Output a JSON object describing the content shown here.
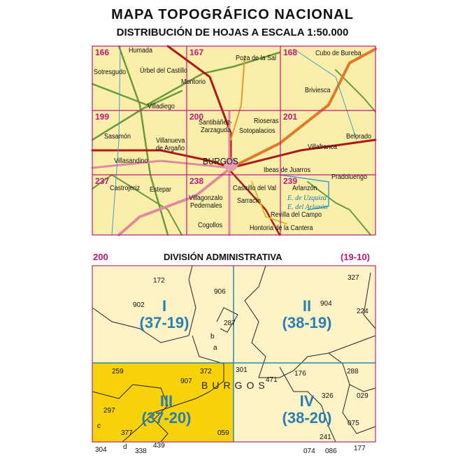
{
  "header": {
    "title": "MAPA TOPOGRÁFICO NACIONAL",
    "subtitle": "DISTRIBUCIÓN DE HOJAS A ESCALA 1:50.000"
  },
  "overview_map": {
    "sheets": [
      "166",
      "167",
      "168",
      "199",
      "200",
      "201",
      "237",
      "238",
      "239"
    ],
    "places": [
      "Humada",
      "Sotresgudo",
      "Úrbel del Castillo",
      "Montorio",
      "Poza de la Sal",
      "Cubo de Bureba",
      "Briviesca",
      "Villadiego",
      "Santibáñez-",
      "Zarzaguda",
      "Rioseras",
      "Sotopalacios",
      "Sasamón",
      "Villanueva",
      "de Argaño",
      "Belorado",
      "Villafranca",
      "Villasandino",
      "BURGOS",
      "Ibeas de Juarros",
      "Pradoluengo",
      "Castrojeriz",
      "Estepar",
      "Castrillo del Val",
      "Arlanzón",
      "Villagonzalo",
      "Pedernales",
      "Sarracín",
      "Revilla del Campo",
      "Cogollos",
      "Hontoria de la Cantera"
    ],
    "reservoirs": [
      "E. de Uzquiza",
      "E. del Arlazón"
    ],
    "colors": {
      "land": "#fbeeaa",
      "grid": "#c0187a",
      "roads_main": "#b01818",
      "roads_secondary": "#6a9a3a",
      "highway": "#e08aa0",
      "rivers": "#3aa0c8"
    }
  },
  "admin_map": {
    "sheet": "200",
    "title": "DIVISIÓN ADMINISTRATIVA",
    "code": "(19-10)",
    "quadrants": [
      {
        "roman": "I",
        "code": "(37-19)"
      },
      {
        "roman": "II",
        "code": "(38-19)"
      },
      {
        "roman": "III",
        "code": "(37-20)",
        "highlighted": true
      },
      {
        "roman": "IV",
        "code": "(38-20)"
      }
    ],
    "city": "BURGOS",
    "municipality_codes": [
      "172",
      "906",
      "327",
      "902",
      "904",
      "224",
      "287",
      "b",
      "a",
      "259",
      "372",
      "301",
      "176",
      "288",
      "907",
      "471",
      "029",
      "326",
      "297",
      "075",
      "c",
      "377",
      "059",
      "241",
      "304",
      "d",
      "338",
      "439",
      "074",
      "086",
      "177"
    ],
    "colors": {
      "land": "#fdf3c6",
      "highlight": "#f7d20a",
      "quad_lines": "#2a8ab0",
      "frame": "#b0307a",
      "text_quadrant": "#2a7fb0"
    }
  }
}
